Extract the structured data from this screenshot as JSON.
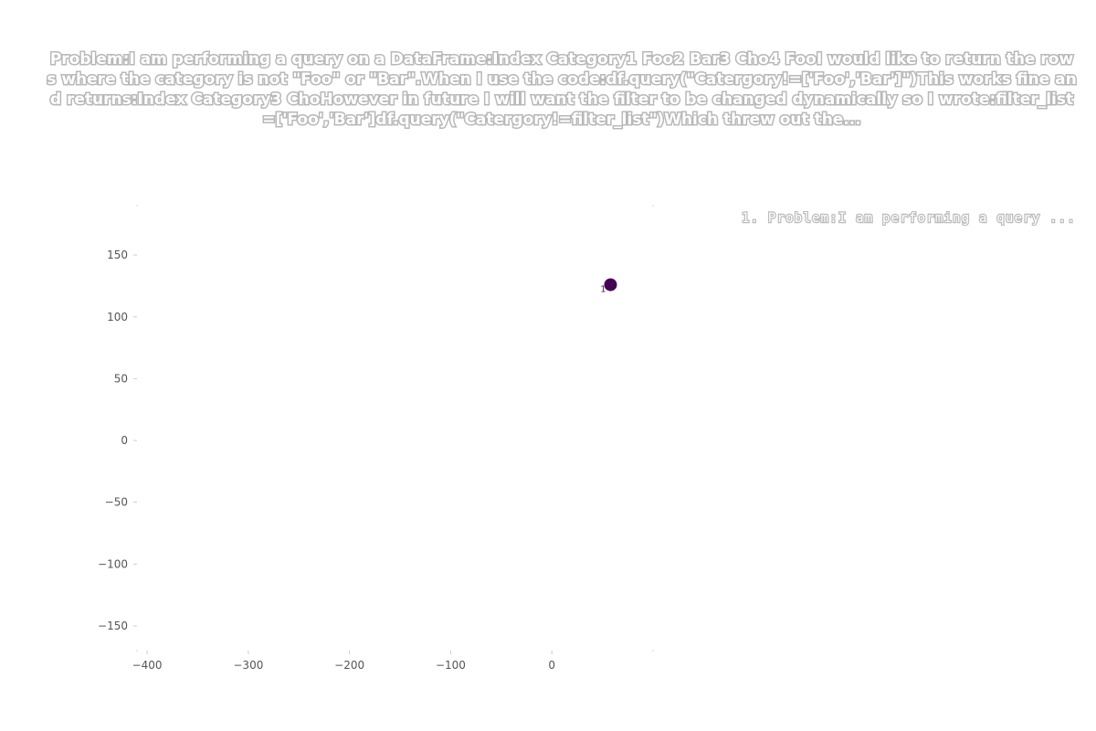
{
  "chart_data": {
    "type": "scatter",
    "title": "Problem:I am performing a query on a DataFrame:Index Category1     Foo2     Bar3     Cho4     FooI would like to return the rows where the category is not \"Foo\" or \"Bar\".When I use the code:df.query(\"Catergory!=['Foo','Bar']\")This works fine and returns:Index Category3     ChoHowever in future I will want the filter to be changed dynamically so I wrote:filter_list=['Foo','Bar']df.query(\"Catergory!=filter_list\")Which threw out the...",
    "xlabel": "",
    "ylabel": "",
    "xlim": [
      -410,
      100
    ],
    "ylim": [
      -170,
      190
    ],
    "x_ticks": [
      -400,
      -300,
      -200,
      -100,
      0
    ],
    "x_tick_labels": [
      "−400",
      "−300",
      "−200",
      "−100",
      "0"
    ],
    "y_ticks": [
      150,
      100,
      50,
      0,
      -50,
      -100,
      -150
    ],
    "y_tick_labels": [
      "150",
      "100",
      "50",
      "0",
      "−50",
      "−100",
      "−150"
    ],
    "grid": false,
    "legend": {
      "placement": "top-right",
      "entries": [
        "1. Problem:I am performing a query ..."
      ]
    },
    "series": [
      {
        "points": [
          {
            "x": 58,
            "y": 126,
            "label": "1"
          }
        ],
        "color": "#440154"
      }
    ]
  }
}
